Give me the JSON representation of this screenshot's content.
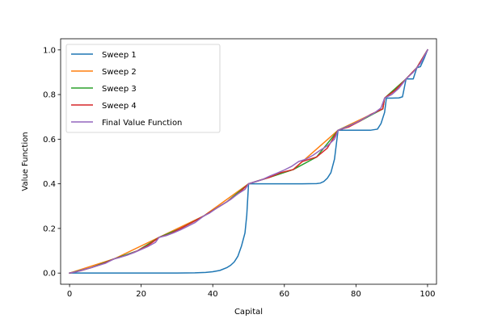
{
  "chart_data": {
    "type": "line",
    "xlabel": "Capital",
    "ylabel": "Value Function",
    "xlim": [
      -2.5,
      102.5
    ],
    "ylim": [
      -0.05,
      1.05
    ],
    "xticks": [
      "0",
      "20",
      "40",
      "60",
      "80",
      "100"
    ],
    "xtick_values": [
      0,
      20,
      40,
      60,
      80,
      100
    ],
    "yticks": [
      "0.0",
      "0.2",
      "0.4",
      "0.6",
      "0.8",
      "1.0"
    ],
    "ytick_values": [
      0,
      0.2,
      0.4,
      0.6,
      0.8,
      1.0
    ],
    "grid": false,
    "legend_position": "top-left",
    "series": [
      {
        "name": "Sweep 1",
        "color": "#1f77b4",
        "points": [
          [
            0,
            0.0
          ],
          [
            10,
            0.0
          ],
          [
            20,
            0.0
          ],
          [
            30,
            0.0
          ],
          [
            35,
            0.001
          ],
          [
            38,
            0.003
          ],
          [
            40,
            0.006
          ],
          [
            42,
            0.012
          ],
          [
            44,
            0.025
          ],
          [
            45,
            0.035
          ],
          [
            46,
            0.05
          ],
          [
            47,
            0.075
          ],
          [
            48,
            0.12
          ],
          [
            49,
            0.18
          ],
          [
            49.5,
            0.26
          ],
          [
            50,
            0.4
          ],
          [
            55,
            0.4
          ],
          [
            60,
            0.4
          ],
          [
            65,
            0.4
          ],
          [
            69,
            0.401
          ],
          [
            70,
            0.403
          ],
          [
            71,
            0.41
          ],
          [
            72,
            0.425
          ],
          [
            73,
            0.45
          ],
          [
            74,
            0.51
          ],
          [
            75,
            0.64
          ],
          [
            80,
            0.64
          ],
          [
            84,
            0.64
          ],
          [
            86,
            0.645
          ],
          [
            87,
            0.67
          ],
          [
            88,
            0.72
          ],
          [
            88.5,
            0.784
          ],
          [
            90,
            0.784
          ],
          [
            92,
            0.785
          ],
          [
            93,
            0.79
          ],
          [
            94,
            0.87
          ],
          [
            96,
            0.87
          ],
          [
            97,
            0.92
          ],
          [
            98,
            0.925
          ],
          [
            99,
            0.96
          ],
          [
            100,
            1.0
          ]
        ]
      },
      {
        "name": "Sweep 2",
        "color": "#ff7f0e",
        "points": [
          [
            0,
            0.0
          ],
          [
            12.5,
            0.064
          ],
          [
            25,
            0.16
          ],
          [
            37.5,
            0.256
          ],
          [
            50,
            0.4
          ],
          [
            62.5,
            0.464
          ],
          [
            75,
            0.64
          ],
          [
            87.5,
            0.736
          ],
          [
            88,
            0.784
          ],
          [
            94,
            0.87
          ],
          [
            97,
            0.92
          ],
          [
            100,
            1.0
          ]
        ]
      },
      {
        "name": "Sweep 3",
        "color": "#2ca02c",
        "points": [
          [
            0,
            0.0
          ],
          [
            6,
            0.024
          ],
          [
            12.5,
            0.064
          ],
          [
            19,
            0.1
          ],
          [
            25,
            0.16
          ],
          [
            31,
            0.2
          ],
          [
            37.5,
            0.256
          ],
          [
            44,
            0.32
          ],
          [
            50,
            0.4
          ],
          [
            56,
            0.43
          ],
          [
            62.5,
            0.464
          ],
          [
            69,
            0.52
          ],
          [
            75,
            0.64
          ],
          [
            81,
            0.68
          ],
          [
            87.5,
            0.736
          ],
          [
            88,
            0.784
          ],
          [
            94,
            0.87
          ],
          [
            97,
            0.92
          ],
          [
            100,
            1.0
          ]
        ]
      },
      {
        "name": "Sweep 4",
        "color": "#d62728",
        "points": [
          [
            0,
            0.0
          ],
          [
            3,
            0.01
          ],
          [
            6,
            0.024
          ],
          [
            9,
            0.04
          ],
          [
            12.5,
            0.064
          ],
          [
            16,
            0.08
          ],
          [
            19,
            0.1
          ],
          [
            22,
            0.125
          ],
          [
            25,
            0.16
          ],
          [
            28,
            0.175
          ],
          [
            31,
            0.2
          ],
          [
            34,
            0.225
          ],
          [
            37.5,
            0.256
          ],
          [
            41,
            0.29
          ],
          [
            44,
            0.32
          ],
          [
            47,
            0.355
          ],
          [
            50,
            0.4
          ],
          [
            53,
            0.415
          ],
          [
            56,
            0.43
          ],
          [
            59,
            0.45
          ],
          [
            62.5,
            0.464
          ],
          [
            65,
            0.5
          ],
          [
            69,
            0.52
          ],
          [
            72,
            0.56
          ],
          [
            75,
            0.64
          ],
          [
            78,
            0.655
          ],
          [
            81,
            0.68
          ],
          [
            84,
            0.71
          ],
          [
            87.5,
            0.736
          ],
          [
            88,
            0.784
          ],
          [
            91,
            0.82
          ],
          [
            94,
            0.87
          ],
          [
            97,
            0.92
          ],
          [
            100,
            1.0
          ]
        ]
      },
      {
        "name": "Final Value Function",
        "color": "#9467bd",
        "points": [
          [
            0,
            0.0
          ],
          [
            2,
            0.006
          ],
          [
            4,
            0.016
          ],
          [
            6,
            0.024
          ],
          [
            8,
            0.034
          ],
          [
            10,
            0.044
          ],
          [
            12.5,
            0.064
          ],
          [
            14,
            0.07
          ],
          [
            16,
            0.08
          ],
          [
            18,
            0.092
          ],
          [
            20,
            0.106
          ],
          [
            22,
            0.12
          ],
          [
            24,
            0.138
          ],
          [
            25,
            0.16
          ],
          [
            27,
            0.168
          ],
          [
            29,
            0.18
          ],
          [
            31,
            0.194
          ],
          [
            33,
            0.21
          ],
          [
            35,
            0.226
          ],
          [
            37.5,
            0.256
          ],
          [
            39,
            0.268
          ],
          [
            41,
            0.29
          ],
          [
            43,
            0.31
          ],
          [
            45,
            0.33
          ],
          [
            47,
            0.355
          ],
          [
            49,
            0.375
          ],
          [
            50,
            0.4
          ],
          [
            52,
            0.41
          ],
          [
            54,
            0.42
          ],
          [
            56,
            0.435
          ],
          [
            58,
            0.448
          ],
          [
            60,
            0.462
          ],
          [
            62,
            0.478
          ],
          [
            64,
            0.5
          ],
          [
            66,
            0.51
          ],
          [
            68,
            0.528
          ],
          [
            70,
            0.55
          ],
          [
            72,
            0.57
          ],
          [
            74,
            0.6
          ],
          [
            75,
            0.64
          ],
          [
            77,
            0.652
          ],
          [
            79,
            0.666
          ],
          [
            81,
            0.682
          ],
          [
            83,
            0.7
          ],
          [
            85,
            0.716
          ],
          [
            87,
            0.74
          ],
          [
            88,
            0.784
          ],
          [
            90,
            0.8
          ],
          [
            92,
            0.828
          ],
          [
            94,
            0.87
          ],
          [
            96,
            0.9
          ],
          [
            98,
            0.94
          ],
          [
            100,
            1.0
          ]
        ]
      }
    ]
  }
}
